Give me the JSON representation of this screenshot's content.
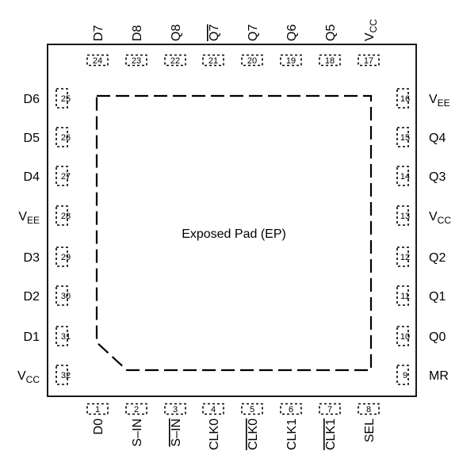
{
  "center_label": "Exposed Pad (EP)",
  "pins": {
    "bottom": [
      {
        "num": "1",
        "name": "D0",
        "bar": false
      },
      {
        "num": "2",
        "name": "S–IN",
        "bar": false
      },
      {
        "num": "3",
        "name": "S–IN",
        "bar": true
      },
      {
        "num": "4",
        "name": "CLK0",
        "bar": false
      },
      {
        "num": "5",
        "name": "CLK0",
        "bar": true
      },
      {
        "num": "6",
        "name": "CLK1",
        "bar": false
      },
      {
        "num": "7",
        "name": "CLK1",
        "bar": true
      },
      {
        "num": "8",
        "name": "SEL",
        "bar": false
      }
    ],
    "right": [
      {
        "num": "9",
        "name": "MR"
      },
      {
        "num": "10",
        "name": "Q0"
      },
      {
        "num": "11",
        "name": "Q1"
      },
      {
        "num": "12",
        "name": "Q2"
      },
      {
        "num": "13",
        "name": "V",
        "sub": "CC"
      },
      {
        "num": "14",
        "name": "Q3"
      },
      {
        "num": "15",
        "name": "Q4"
      },
      {
        "num": "16",
        "name": "V",
        "sub": "EE"
      }
    ],
    "top": [
      {
        "num": "17",
        "name": "V",
        "sub": "CC",
        "bar": false
      },
      {
        "num": "18",
        "name": "Q5",
        "bar": false
      },
      {
        "num": "19",
        "name": "Q6",
        "bar": false
      },
      {
        "num": "20",
        "name": "Q7",
        "bar": false
      },
      {
        "num": "21",
        "name": "Q7",
        "bar": true
      },
      {
        "num": "22",
        "name": "Q8",
        "bar": false
      },
      {
        "num": "23",
        "name": "D8",
        "bar": false
      },
      {
        "num": "24",
        "name": "D7",
        "bar": false
      }
    ],
    "left": [
      {
        "num": "25",
        "name": "D6"
      },
      {
        "num": "26",
        "name": "D5"
      },
      {
        "num": "27",
        "name": "D4"
      },
      {
        "num": "28",
        "name": "V",
        "sub": "EE"
      },
      {
        "num": "29",
        "name": "D3"
      },
      {
        "num": "30",
        "name": "D2"
      },
      {
        "num": "31",
        "name": "D1"
      },
      {
        "num": "32",
        "name": "V",
        "sub": "CC"
      }
    ]
  }
}
